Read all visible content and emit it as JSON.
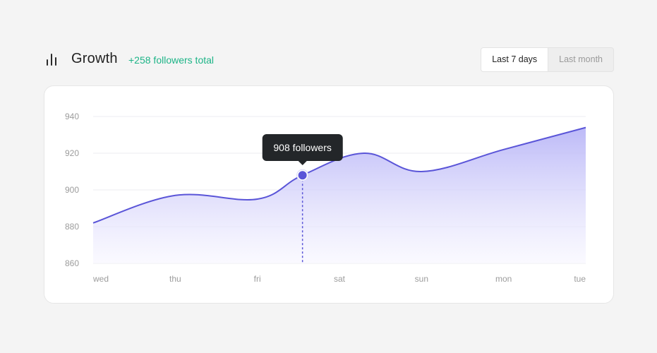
{
  "header": {
    "icon": "bar-chart-icon",
    "title": "Growth",
    "total": "+258 followers total"
  },
  "range": {
    "options": [
      "Last 7 days",
      "Last month"
    ],
    "selected": "Last 7 days"
  },
  "tooltip": {
    "text": "908 followers",
    "value": 908,
    "x_position": 2.55
  },
  "colors": {
    "line": "#5a55d8",
    "fill_top": "#b9b6f7",
    "fill_bottom": "#f7f6ff",
    "accent_green": "#1db487",
    "grid": "#ececf0",
    "tooltip_bg": "#232629"
  },
  "chart_data": {
    "type": "area",
    "categories": [
      "wed",
      "thu",
      "fri",
      "sat",
      "sun",
      "mon",
      "tue"
    ],
    "x": [
      0,
      1,
      2,
      2.55,
      3.3,
      4,
      5,
      6
    ],
    "values": [
      882,
      897,
      895,
      908,
      920,
      910,
      922,
      934
    ],
    "ylim": [
      860,
      940
    ],
    "yticks": [
      860,
      880,
      900,
      920,
      940
    ],
    "grid": true,
    "title": "",
    "xlabel": "",
    "ylabel": ""
  }
}
